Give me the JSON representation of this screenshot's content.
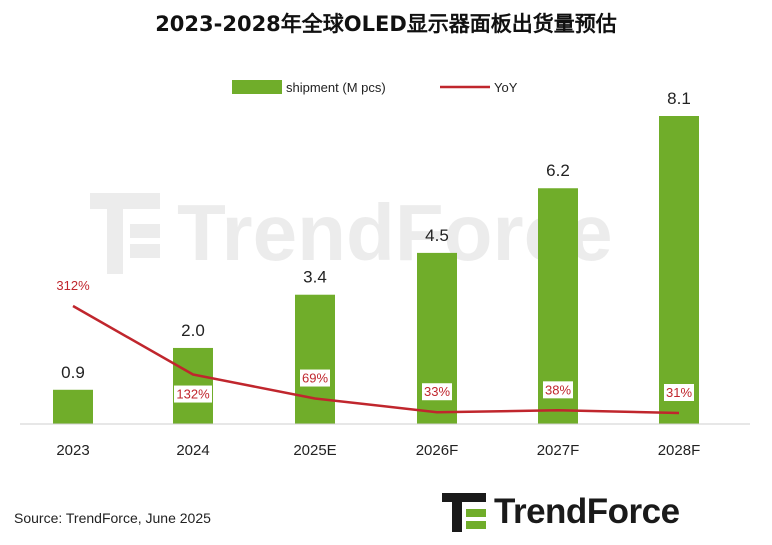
{
  "chart_data": {
    "type": "bar",
    "title": "2023-2028年全球OLED显示器面板出货量预估",
    "categories": [
      "2023",
      "2024",
      "2025E",
      "2026F",
      "2027F",
      "2028F"
    ],
    "series": [
      {
        "name": "shipment (M pcs)",
        "type": "bar",
        "values": [
          0.9,
          2.0,
          3.4,
          4.5,
          6.2,
          8.1
        ],
        "labels": [
          "0.9",
          "2.0",
          "3.4",
          "4.5",
          "6.2",
          "8.1"
        ]
      },
      {
        "name": "YoY",
        "type": "line",
        "values": [
          312,
          132,
          69,
          33,
          38,
          31
        ],
        "labels": [
          "312%",
          "132%",
          "69%",
          "33%",
          "38%",
          "31%"
        ]
      }
    ],
    "legend": "top-center",
    "grid": false,
    "colors": {
      "bar": "#70ad2a",
      "line": "#c0262d",
      "label": "#c0262d"
    }
  },
  "source": "Source: TrendForce, June 2025",
  "brand": {
    "name": "TrendForce",
    "watermark": "TrendForce"
  }
}
